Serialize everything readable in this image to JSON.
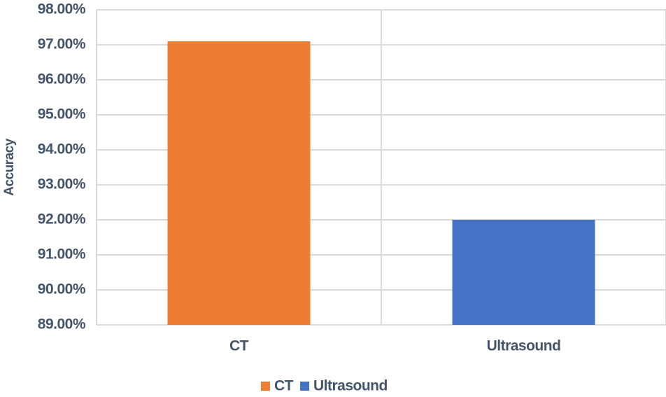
{
  "chart_data": {
    "type": "bar",
    "y_label": "Accuracy",
    "categories": [
      "CT",
      "Ultrasound"
    ],
    "series": [
      {
        "name": "CT",
        "color": "#ed7d31",
        "values": [
          97.1,
          null
        ]
      },
      {
        "name": "Ultrasound",
        "color": "#4472c4",
        "values": [
          null,
          92
        ]
      }
    ],
    "ylim": [
      89,
      98
    ],
    "yticks": [
      {
        "value": 89,
        "label": "89.00%"
      },
      {
        "value": 90,
        "label": "90.00%"
      },
      {
        "value": 91,
        "label": "91.00%"
      },
      {
        "value": 92,
        "label": "92.00%"
      },
      {
        "value": 93,
        "label": "93.00%"
      },
      {
        "value": 94,
        "label": "94.00%"
      },
      {
        "value": 95,
        "label": "95.00%"
      },
      {
        "value": 96,
        "label": "96.00%"
      },
      {
        "value": 97,
        "label": "97.00%"
      },
      {
        "value": 98,
        "label": "98.00%"
      }
    ],
    "grid": true,
    "legend": "bottom"
  }
}
